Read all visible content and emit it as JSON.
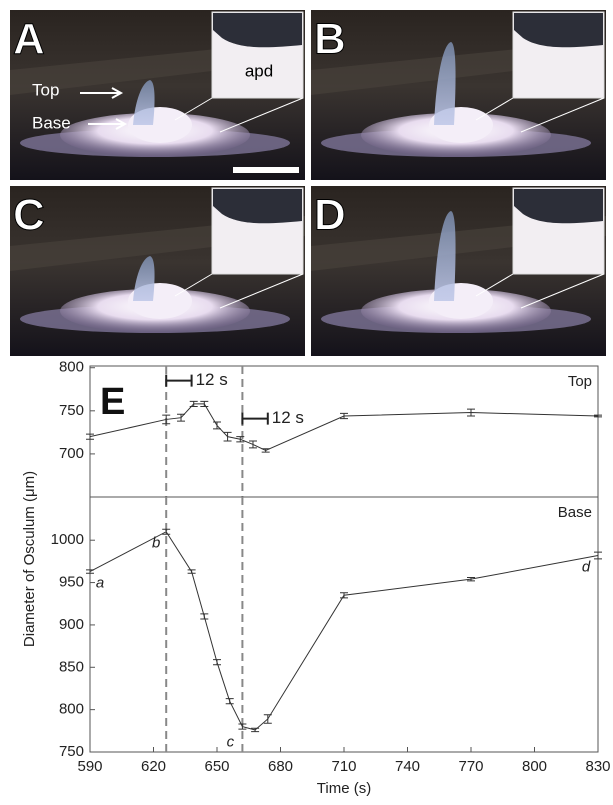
{
  "photos": {
    "panels": [
      "A",
      "B",
      "C",
      "D"
    ],
    "top_label": "Top",
    "base_label": "Base",
    "inset_label": "apd"
  },
  "chart_data": [
    {
      "type": "line",
      "panel_label": "E",
      "x": [
        590,
        626,
        633,
        639,
        644,
        650,
        655,
        661,
        667,
        673,
        710,
        770,
        830
      ],
      "series": [
        {
          "name": "Top",
          "color": "#333333",
          "values": [
            720,
            740,
            742,
            758,
            758,
            733,
            720,
            717,
            711,
            704,
            744,
            748,
            744
          ],
          "errors": [
            3,
            5,
            4,
            3,
            3,
            4,
            5,
            3,
            4,
            2,
            3,
            4,
            1
          ]
        }
      ],
      "xlim": [
        590,
        830
      ],
      "ylim": [
        650,
        802
      ],
      "yticks": [
        700,
        750,
        800
      ],
      "vlines": [
        626,
        662
      ],
      "annotations": [
        {
          "text": "12 s",
          "x": [
            626,
            638
          ],
          "y": 785
        },
        {
          "text": "12 s",
          "x": [
            662,
            674
          ],
          "y": 741
        }
      ]
    },
    {
      "type": "line",
      "x": [
        590,
        626,
        638,
        644,
        650,
        656,
        662,
        668,
        674,
        710,
        770,
        830
      ],
      "series": [
        {
          "name": "Base",
          "color": "#333333",
          "values": [
            963,
            1010,
            963,
            910,
            856,
            810,
            780,
            776,
            789,
            935,
            954,
            982
          ],
          "errors": [
            2,
            3,
            2,
            3,
            3,
            3,
            3,
            2,
            5,
            3,
            2,
            4
          ]
        }
      ],
      "xlim": [
        590,
        830
      ],
      "ylim": [
        750,
        1051
      ],
      "yticks": [
        750,
        800,
        850,
        900,
        950,
        1000
      ],
      "xticks": [
        590,
        620,
        650,
        680,
        710,
        740,
        770,
        800,
        830
      ],
      "vlines": [
        626,
        662
      ],
      "point_labels": [
        {
          "text": "a",
          "x": 590,
          "y": 963
        },
        {
          "text": "b",
          "x": 626,
          "y": 1010
        },
        {
          "text": "c",
          "x": 662,
          "y": 780
        },
        {
          "text": "d",
          "x": 830,
          "y": 982
        }
      ],
      "xlabel": "Time (s)",
      "ylabel": "Diameter of Osculum (μm)"
    }
  ]
}
